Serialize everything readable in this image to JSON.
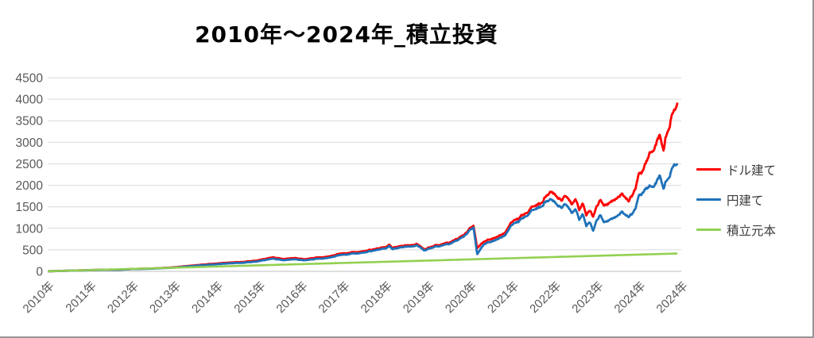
{
  "title": "2010年〜2024年_積立投資",
  "chart_data": {
    "type": "line",
    "title": "2010年〜2024年_積立投資",
    "grid": true,
    "legend_position": "right",
    "ylim": [
      0,
      4500
    ],
    "y_tick_step": 500,
    "y_tick_labels": [
      "0",
      "500",
      "1000",
      "1500",
      "2000",
      "2500",
      "3000",
      "3500",
      "4000",
      "4500"
    ],
    "x_axis": {
      "unit": "months since Jan 2010",
      "months_total": 180,
      "tick_interval_months": 12,
      "tick_labels": [
        "2010年",
        "2011年",
        "2012年",
        "2013年",
        "2014年",
        "2015年",
        "2016年",
        "2017年",
        "2018年",
        "2019年",
        "2020年",
        "2021年",
        "2022年",
        "2023年",
        "2024年",
        "2024年"
      ]
    },
    "colors": {
      "gridline": "#d9d9d9",
      "axis_line": "#bfbfbf",
      "axis_label": "#595959",
      "title": "#000000"
    },
    "series": [
      {
        "name": "ドル建て",
        "color": "#ff0000",
        "points": [
          [
            0,
            2
          ],
          [
            6,
            16
          ],
          [
            12,
            30
          ],
          [
            18,
            40
          ],
          [
            20,
            38
          ],
          [
            24,
            55
          ],
          [
            30,
            68
          ],
          [
            36,
            95
          ],
          [
            42,
            140
          ],
          [
            48,
            185
          ],
          [
            54,
            215
          ],
          [
            57,
            230
          ],
          [
            60,
            262
          ],
          [
            64,
            330
          ],
          [
            67,
            290
          ],
          [
            70,
            310
          ],
          [
            73,
            280
          ],
          [
            75,
            300
          ],
          [
            78,
            330
          ],
          [
            81,
            370
          ],
          [
            84,
            420
          ],
          [
            88,
            450
          ],
          [
            90,
            470
          ],
          [
            93,
            520
          ],
          [
            96,
            560
          ],
          [
            97,
            620
          ],
          [
            98,
            540
          ],
          [
            100,
            580
          ],
          [
            103,
            620
          ],
          [
            105,
            640
          ],
          [
            107,
            510
          ],
          [
            108,
            540
          ],
          [
            111,
            620
          ],
          [
            114,
            680
          ],
          [
            116,
            750
          ],
          [
            118,
            820
          ],
          [
            119,
            880
          ],
          [
            120,
            980
          ],
          [
            121,
            1040
          ],
          [
            122,
            530
          ],
          [
            124,
            700
          ],
          [
            126,
            760
          ],
          [
            128,
            820
          ],
          [
            130,
            900
          ],
          [
            132,
            1150
          ],
          [
            134,
            1220
          ],
          [
            136,
            1350
          ],
          [
            138,
            1500
          ],
          [
            140,
            1600
          ],
          [
            141,
            1700
          ],
          [
            143,
            1880
          ],
          [
            145,
            1700
          ],
          [
            146,
            1650
          ],
          [
            147,
            1750
          ],
          [
            149,
            1550
          ],
          [
            150,
            1650
          ],
          [
            151,
            1450
          ],
          [
            152,
            1600
          ],
          [
            153,
            1300
          ],
          [
            154,
            1420
          ],
          [
            155,
            1280
          ],
          [
            156,
            1500
          ],
          [
            157,
            1650
          ],
          [
            158,
            1500
          ],
          [
            160,
            1600
          ],
          [
            162,
            1750
          ],
          [
            163,
            1820
          ],
          [
            164,
            1700
          ],
          [
            165,
            1650
          ],
          [
            166,
            1780
          ],
          [
            167,
            1950
          ],
          [
            168,
            2250
          ],
          [
            169,
            2300
          ],
          [
            170,
            2500
          ],
          [
            171,
            2700
          ],
          [
            172,
            2850
          ],
          [
            173,
            3050
          ],
          [
            174,
            3200
          ],
          [
            175,
            2900
          ],
          [
            176,
            3300
          ],
          [
            177,
            3600
          ],
          [
            178,
            3850
          ],
          [
            179,
            3950
          ]
        ]
      },
      {
        "name": "円建て",
        "color": "#1f72b8",
        "points": [
          [
            0,
            2
          ],
          [
            6,
            15
          ],
          [
            12,
            28
          ],
          [
            18,
            38
          ],
          [
            20,
            36
          ],
          [
            24,
            52
          ],
          [
            30,
            64
          ],
          [
            36,
            88
          ],
          [
            42,
            128
          ],
          [
            48,
            168
          ],
          [
            54,
            196
          ],
          [
            57,
            210
          ],
          [
            60,
            238
          ],
          [
            64,
            298
          ],
          [
            67,
            262
          ],
          [
            70,
            280
          ],
          [
            73,
            255
          ],
          [
            75,
            272
          ],
          [
            78,
            300
          ],
          [
            81,
            340
          ],
          [
            84,
            388
          ],
          [
            88,
            420
          ],
          [
            90,
            440
          ],
          [
            93,
            490
          ],
          [
            96,
            530
          ],
          [
            97,
            588
          ],
          [
            98,
            512
          ],
          [
            100,
            550
          ],
          [
            103,
            590
          ],
          [
            105,
            610
          ],
          [
            107,
            485
          ],
          [
            108,
            515
          ],
          [
            111,
            590
          ],
          [
            114,
            648
          ],
          [
            116,
            715
          ],
          [
            118,
            785
          ],
          [
            119,
            845
          ],
          [
            120,
            940
          ],
          [
            121,
            1000
          ],
          [
            122,
            390
          ],
          [
            124,
            640
          ],
          [
            126,
            700
          ],
          [
            128,
            760
          ],
          [
            130,
            840
          ],
          [
            132,
            1080
          ],
          [
            134,
            1150
          ],
          [
            136,
            1280
          ],
          [
            138,
            1420
          ],
          [
            140,
            1520
          ],
          [
            141,
            1600
          ],
          [
            143,
            1700
          ],
          [
            145,
            1520
          ],
          [
            146,
            1480
          ],
          [
            147,
            1560
          ],
          [
            149,
            1350
          ],
          [
            150,
            1420
          ],
          [
            151,
            1220
          ],
          [
            152,
            1350
          ],
          [
            153,
            1050
          ],
          [
            154,
            1150
          ],
          [
            155,
            950
          ],
          [
            156,
            1180
          ],
          [
            157,
            1300
          ],
          [
            158,
            1120
          ],
          [
            160,
            1200
          ],
          [
            162,
            1320
          ],
          [
            163,
            1400
          ],
          [
            164,
            1300
          ],
          [
            165,
            1280
          ],
          [
            166,
            1350
          ],
          [
            167,
            1480
          ],
          [
            168,
            1750
          ],
          [
            169,
            1800
          ],
          [
            170,
            1900
          ],
          [
            171,
            1950
          ],
          [
            172,
            2000
          ],
          [
            173,
            2120
          ],
          [
            174,
            2250
          ],
          [
            175,
            1980
          ],
          [
            176,
            2180
          ],
          [
            177,
            2350
          ],
          [
            178,
            2550
          ],
          [
            179,
            2520
          ]
        ]
      },
      {
        "name": "積立元本",
        "color": "#92d050",
        "points": [
          [
            0,
            2
          ],
          [
            60,
            140
          ],
          [
            120,
            278
          ],
          [
            179,
            415
          ]
        ]
      }
    ]
  }
}
